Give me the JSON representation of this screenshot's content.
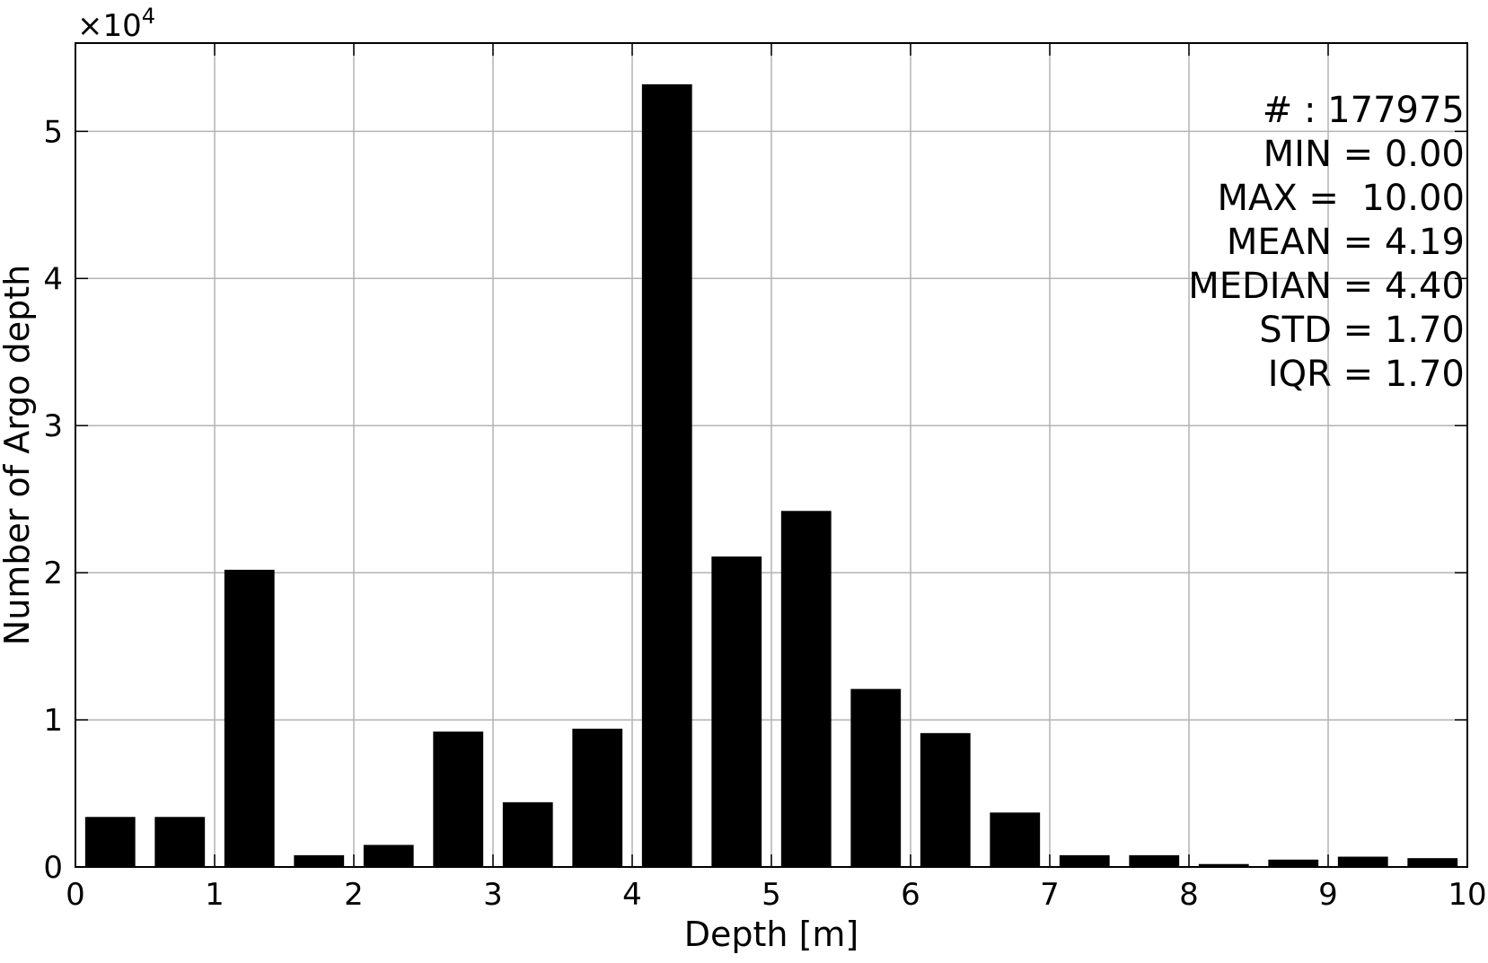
{
  "chart_data": {
    "type": "bar",
    "xlabel": "Depth [m]",
    "ylabel": "Number of Argo depth",
    "y_multiplier_label": "×10",
    "y_multiplier_exponent": "4",
    "xlim": [
      0,
      10
    ],
    "ylim": [
      0,
      56000
    ],
    "xticks": [
      0,
      1,
      2,
      3,
      4,
      5,
      6,
      7,
      8,
      9,
      10
    ],
    "xtick_labels": [
      "0",
      "1",
      "2",
      "3",
      "4",
      "5",
      "6",
      "7",
      "8",
      "9",
      "10"
    ],
    "yticks": [
      0,
      10000,
      20000,
      30000,
      40000,
      50000
    ],
    "ytick_labels": [
      "0",
      "1",
      "2",
      "3",
      "4",
      "5"
    ],
    "grid": true,
    "bin_width": 0.5,
    "x": [
      0.25,
      0.75,
      1.25,
      1.75,
      2.25,
      2.75,
      3.25,
      3.75,
      4.25,
      4.75,
      5.25,
      5.75,
      6.25,
      6.75,
      7.25,
      7.75,
      8.25,
      8.75,
      9.25,
      9.75
    ],
    "values": [
      3400,
      3400,
      20200,
      800,
      1500,
      9200,
      4400,
      9400,
      53200,
      21100,
      24200,
      12100,
      9100,
      3700,
      800,
      800,
      200,
      500,
      700,
      600
    ],
    "annotations": [
      "# : 177975",
      "MIN = 0.00",
      "MAX =  10.00",
      "MEAN = 4.19",
      "MEDIAN = 4.40",
      "STD = 1.70",
      "IQR = 1.70"
    ]
  }
}
